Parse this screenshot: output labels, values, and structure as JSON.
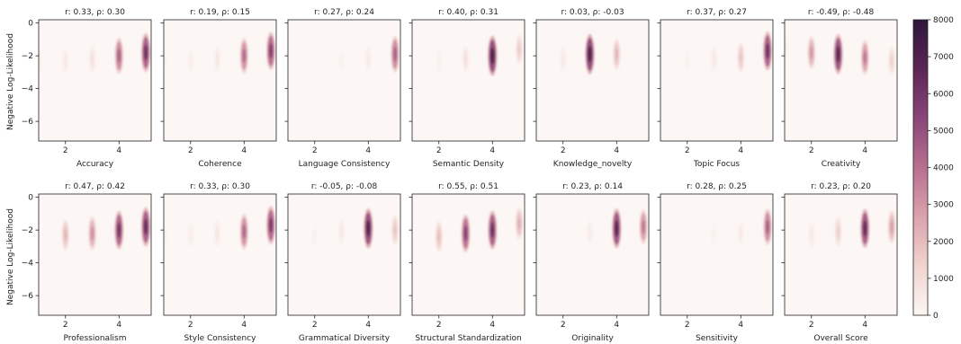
{
  "figure": {
    "y_axis_label": "Negative Log-Likelihood",
    "colorbar": {
      "min": 0,
      "max": 8000,
      "ticks": [
        "0",
        "1000",
        "2000",
        "3000",
        "4000",
        "5000",
        "6000",
        "7000",
        "8000"
      ],
      "colors": [
        "#fcf6f4",
        "#f0d4cf",
        "#dba3ad",
        "#b86f90",
        "#8a4678",
        "#5c2657",
        "#2d1738"
      ]
    },
    "x_ticks": [
      "2",
      "4"
    ],
    "y_ticks": [
      "0",
      "−2",
      "−4",
      "−6"
    ]
  },
  "chart_data": {
    "type": "heatmap",
    "x_range": [
      1,
      5.2
    ],
    "y_range": [
      -7.2,
      0.2
    ],
    "density_max": 8000,
    "panels": [
      {
        "xlabel": "Accuracy",
        "title": "r: 0.33, ρ: 0.30",
        "blobs": [
          {
            "x": 1,
            "y": -2.3,
            "d": 400
          },
          {
            "x": 2,
            "y": -2.3,
            "d": 600
          },
          {
            "x": 3,
            "y": -2.2,
            "d": 900
          },
          {
            "x": 4,
            "y": -2.0,
            "d": 4500
          },
          {
            "x": 5,
            "y": -1.8,
            "d": 6200
          }
        ]
      },
      {
        "xlabel": "Coherence",
        "title": "r: 0.19, ρ: 0.15",
        "blobs": [
          {
            "x": 1,
            "y": -2.3,
            "d": 300
          },
          {
            "x": 2,
            "y": -2.3,
            "d": 400
          },
          {
            "x": 3,
            "y": -2.2,
            "d": 700
          },
          {
            "x": 4,
            "y": -2.0,
            "d": 4200
          },
          {
            "x": 5,
            "y": -1.7,
            "d": 5600
          }
        ]
      },
      {
        "xlabel": "Language Consistency",
        "title": "r: 0.27, ρ: 0.24",
        "blobs": [
          {
            "x": 3,
            "y": -2.3,
            "d": 250
          },
          {
            "x": 4,
            "y": -2.2,
            "d": 500
          },
          {
            "x": 5,
            "y": -1.9,
            "d": 4500
          }
        ]
      },
      {
        "xlabel": "Semantic Density",
        "title": "r: 0.40, ρ: 0.31",
        "blobs": [
          {
            "x": 2,
            "y": -2.3,
            "d": 300
          },
          {
            "x": 3,
            "y": -2.2,
            "d": 900
          },
          {
            "x": 4,
            "y": -2.0,
            "d": 7200
          },
          {
            "x": 5,
            "y": -1.6,
            "d": 1600
          }
        ]
      },
      {
        "xlabel": "Knowledge_novelty",
        "title": "r: 0.03, ρ: -0.03",
        "blobs": [
          {
            "x": 2,
            "y": -2.2,
            "d": 600
          },
          {
            "x": 3,
            "y": -1.9,
            "d": 7200
          },
          {
            "x": 4,
            "y": -1.9,
            "d": 2200
          }
        ]
      },
      {
        "xlabel": "Topic Focus",
        "title": "r: 0.37, ρ: 0.27",
        "blobs": [
          {
            "x": 2,
            "y": -2.3,
            "d": 250
          },
          {
            "x": 3,
            "y": -2.2,
            "d": 600
          },
          {
            "x": 4,
            "y": -2.1,
            "d": 1800
          },
          {
            "x": 5,
            "y": -1.7,
            "d": 6200
          }
        ]
      },
      {
        "xlabel": "Creativity",
        "title": "r: -0.49, ρ: -0.48",
        "blobs": [
          {
            "x": 1,
            "y": -1.5,
            "d": 400
          },
          {
            "x": 2,
            "y": -1.8,
            "d": 3000
          },
          {
            "x": 3,
            "y": -1.9,
            "d": 6800
          },
          {
            "x": 4,
            "y": -2.1,
            "d": 3800
          },
          {
            "x": 5,
            "y": -2.3,
            "d": 1400
          }
        ]
      },
      {
        "xlabel": "Professionalism",
        "title": "r: 0.47, ρ: 0.42",
        "blobs": [
          {
            "x": 2,
            "y": -2.3,
            "d": 2200
          },
          {
            "x": 3,
            "y": -2.2,
            "d": 3200
          },
          {
            "x": 4,
            "y": -2.0,
            "d": 6000
          },
          {
            "x": 5,
            "y": -1.8,
            "d": 6400
          }
        ]
      },
      {
        "xlabel": "Style Consistency",
        "title": "r: 0.33, ρ: 0.30",
        "blobs": [
          {
            "x": 1,
            "y": -2.3,
            "d": 300
          },
          {
            "x": 2,
            "y": -2.3,
            "d": 400
          },
          {
            "x": 3,
            "y": -2.2,
            "d": 700
          },
          {
            "x": 4,
            "y": -2.1,
            "d": 4300
          },
          {
            "x": 5,
            "y": -1.7,
            "d": 5800
          }
        ]
      },
      {
        "xlabel": "Grammatical Diversity",
        "title": "r: -0.05, ρ: -0.08",
        "blobs": [
          {
            "x": 2,
            "y": -2.4,
            "d": 250
          },
          {
            "x": 3,
            "y": -2.1,
            "d": 600
          },
          {
            "x": 4,
            "y": -1.9,
            "d": 7000
          },
          {
            "x": 5,
            "y": -2.0,
            "d": 1800
          }
        ]
      },
      {
        "xlabel": "Structural Standardization",
        "title": "r: 0.55, ρ: 0.51",
        "blobs": [
          {
            "x": 2,
            "y": -2.4,
            "d": 2000
          },
          {
            "x": 3,
            "y": -2.2,
            "d": 5500
          },
          {
            "x": 4,
            "y": -2.0,
            "d": 6200
          },
          {
            "x": 5,
            "y": -1.6,
            "d": 2400
          }
        ]
      },
      {
        "xlabel": "Originality",
        "title": "r: 0.23, ρ: 0.14",
        "blobs": [
          {
            "x": 3,
            "y": -2.1,
            "d": 500
          },
          {
            "x": 4,
            "y": -1.9,
            "d": 6800
          },
          {
            "x": 5,
            "y": -1.8,
            "d": 3800
          }
        ]
      },
      {
        "xlabel": "Sensitivity",
        "title": "r: 0.28, ρ: 0.25",
        "blobs": [
          {
            "x": 3,
            "y": -2.3,
            "d": 250
          },
          {
            "x": 4,
            "y": -2.2,
            "d": 500
          },
          {
            "x": 5,
            "y": -1.8,
            "d": 4500
          }
        ]
      },
      {
        "xlabel": "Overall Score",
        "title": "r: 0.23, ρ: 0.20",
        "blobs": [
          {
            "x": 2,
            "y": -2.3,
            "d": 600
          },
          {
            "x": 3,
            "y": -2.1,
            "d": 1500
          },
          {
            "x": 4,
            "y": -1.9,
            "d": 6500
          },
          {
            "x": 5,
            "y": -1.8,
            "d": 2800
          }
        ]
      }
    ]
  }
}
